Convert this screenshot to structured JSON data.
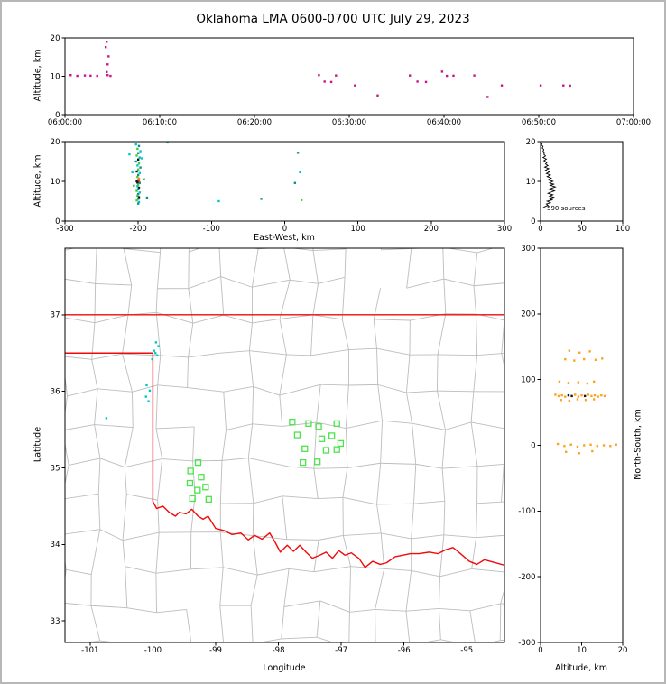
{
  "title": "Oklahoma LMA 0600-0700 UTC July 29, 2023",
  "color_key": {
    "cyan": "#00c8c8",
    "teal": "#0f8f8f",
    "green": "#3ccc3c",
    "black": "#141414",
    "orange": "#ff8c1a",
    "red": "#e03131",
    "o": "#ffa21f",
    "k": "#141414"
  },
  "chart_data": [
    {
      "id": "time_height",
      "type": "scatter",
      "xlabel": "",
      "ylabel": "Altitude, km",
      "xlim": [
        0,
        60
      ],
      "ylim": [
        0,
        20
      ],
      "xticks": [
        0,
        10,
        20,
        30,
        40,
        50,
        60
      ],
      "xtick_labels": [
        "06:00:00",
        "06:10:00",
        "06:20:00",
        "06:30:00",
        "06:40:00",
        "06:50:00",
        "07:00:00"
      ],
      "yticks": [
        0,
        10,
        20
      ],
      "point_color": "#C71585",
      "points": [
        [
          0.6,
          10.3
        ],
        [
          1.3,
          10.1
        ],
        [
          2.1,
          10.2
        ],
        [
          2.7,
          10.15
        ],
        [
          3.4,
          10.1
        ],
        [
          4.4,
          19.0
        ],
        [
          4.3,
          17.6
        ],
        [
          4.6,
          15.2
        ],
        [
          4.5,
          13.1
        ],
        [
          4.4,
          11.1
        ],
        [
          4.5,
          10.3
        ],
        [
          4.8,
          10.1
        ],
        [
          26.8,
          10.3
        ],
        [
          27.4,
          8.6
        ],
        [
          28.1,
          8.5
        ],
        [
          28.6,
          10.2
        ],
        [
          30.6,
          7.6
        ],
        [
          33.0,
          5.0
        ],
        [
          36.4,
          10.2
        ],
        [
          37.2,
          8.6
        ],
        [
          38.1,
          8.5
        ],
        [
          39.8,
          11.2
        ],
        [
          40.3,
          10.1
        ],
        [
          41.0,
          10.15
        ],
        [
          43.2,
          10.2
        ],
        [
          44.6,
          4.6
        ],
        [
          46.1,
          7.6
        ],
        [
          50.2,
          7.6
        ],
        [
          52.6,
          7.6
        ],
        [
          53.3,
          7.55
        ]
      ]
    },
    {
      "id": "ew_height",
      "type": "scatter",
      "xlabel": "East-West, km",
      "ylabel": "Altitude, km",
      "xlim": [
        -300,
        300
      ],
      "ylim": [
        0,
        20
      ],
      "xticks": [
        -300,
        -200,
        -100,
        0,
        100,
        200,
        300
      ],
      "yticks": [
        0,
        10,
        20
      ],
      "point_color": "#0f8f8f",
      "points": [
        [
          -203,
          19.3,
          "cyan"
        ],
        [
          -199,
          18.9,
          "teal"
        ],
        [
          -201,
          18.2,
          "green"
        ],
        [
          -197,
          17.6,
          "cyan"
        ],
        [
          -200,
          17.1,
          "teal"
        ],
        [
          -202,
          16.5,
          "green"
        ],
        [
          -198,
          16.0,
          "cyan"
        ],
        [
          -200,
          15.5,
          "black"
        ],
        [
          -203,
          15.0,
          "teal"
        ],
        [
          -199,
          14.5,
          "green"
        ],
        [
          -201,
          14.0,
          "cyan"
        ],
        [
          -197,
          13.5,
          "teal"
        ],
        [
          -200,
          13.0,
          "green"
        ],
        [
          -202,
          12.5,
          "black"
        ],
        [
          -198,
          12.1,
          "cyan"
        ],
        [
          -200,
          11.6,
          "teal"
        ],
        [
          -201,
          11.1,
          "green"
        ],
        [
          -199,
          10.7,
          "orange"
        ],
        [
          -200,
          10.3,
          "red"
        ],
        [
          -202,
          10.0,
          "black"
        ],
        [
          -199,
          9.9,
          "red"
        ],
        [
          -201,
          9.7,
          "black"
        ],
        [
          -198,
          9.6,
          "teal"
        ],
        [
          -200,
          9.2,
          "green"
        ],
        [
          -201,
          8.8,
          "cyan"
        ],
        [
          -199,
          8.4,
          "black"
        ],
        [
          -200,
          8.0,
          "teal"
        ],
        [
          -202,
          7.6,
          "green"
        ],
        [
          -198,
          7.2,
          "cyan"
        ],
        [
          -200,
          6.8,
          "teal"
        ],
        [
          -201,
          6.4,
          "green"
        ],
        [
          -199,
          6.0,
          "black"
        ],
        [
          -200,
          5.6,
          "teal"
        ],
        [
          -202,
          5.2,
          "green"
        ],
        [
          -199,
          4.8,
          "cyan"
        ],
        [
          -200,
          4.4,
          "teal"
        ],
        [
          -208,
          12.3,
          "cyan"
        ],
        [
          -192,
          10.5,
          "green"
        ],
        [
          -195,
          15.8,
          "cyan"
        ],
        [
          -206,
          8.9,
          "green"
        ],
        [
          -188,
          5.9,
          "teal"
        ],
        [
          -212,
          16.8,
          "cyan"
        ],
        [
          -160,
          19.8,
          "cyan"
        ],
        [
          18,
          17.2,
          "teal"
        ],
        [
          21,
          12.3,
          "cyan"
        ],
        [
          14,
          9.6,
          "teal"
        ],
        [
          23,
          5.3,
          "green"
        ],
        [
          -32,
          5.6,
          "teal"
        ],
        [
          -90,
          5.0,
          "cyan"
        ]
      ]
    },
    {
      "id": "alt_histogram",
      "type": "line",
      "annotation": "590 sources",
      "xlabel": "",
      "ylabel": "",
      "xlim": [
        0,
        100
      ],
      "ylim": [
        0,
        20
      ],
      "xticks": [
        0,
        50,
        100
      ],
      "yticks": [
        0,
        10,
        20
      ],
      "line_color": "#000000",
      "points": [
        [
          2,
          3.2
        ],
        [
          5,
          3.6
        ],
        [
          9,
          4.0
        ],
        [
          7,
          4.3
        ],
        [
          12,
          4.6
        ],
        [
          8,
          5.0
        ],
        [
          14,
          5.3
        ],
        [
          10,
          5.6
        ],
        [
          16,
          6.0
        ],
        [
          11,
          6.3
        ],
        [
          15,
          6.6
        ],
        [
          9,
          7.0
        ],
        [
          13,
          7.3
        ],
        [
          17,
          7.6
        ],
        [
          10,
          8.0
        ],
        [
          14,
          8.3
        ],
        [
          18,
          8.6
        ],
        [
          12,
          9.0
        ],
        [
          16,
          9.3
        ],
        [
          11,
          9.6
        ],
        [
          15,
          10.0
        ],
        [
          9,
          10.4
        ],
        [
          13,
          10.8
        ],
        [
          8,
          11.2
        ],
        [
          12,
          11.6
        ],
        [
          7,
          12.0
        ],
        [
          11,
          12.4
        ],
        [
          6,
          12.8
        ],
        [
          10,
          13.2
        ],
        [
          5,
          13.6
        ],
        [
          9,
          14.0
        ],
        [
          6,
          14.4
        ],
        [
          8,
          14.8
        ],
        [
          4,
          15.2
        ],
        [
          7,
          15.6
        ],
        [
          3,
          16.0
        ],
        [
          6,
          16.4
        ],
        [
          4,
          16.8
        ],
        [
          5,
          17.2
        ],
        [
          3,
          17.6
        ],
        [
          4,
          18.0
        ],
        [
          2,
          18.4
        ],
        [
          3,
          18.8
        ],
        [
          1,
          19.2
        ],
        [
          2,
          19.6
        ]
      ]
    },
    {
      "id": "map",
      "type": "scatter",
      "xlabel": "Longitude",
      "ylabel": "Latitude",
      "xlim": [
        -101.4,
        -94.4
      ],
      "ylim": [
        32.72,
        37.87
      ],
      "xticks": [
        -101,
        -100,
        -99,
        -98,
        -97,
        -96,
        -95
      ],
      "yticks": [
        33,
        34,
        35,
        36,
        37
      ],
      "county_color": "#bdbdbd",
      "square_color": "#4ce44c",
      "vhf_color": "#00c8c8",
      "state_border": {
        "color": "#f10a0a",
        "lines": [
          [
            [
              -101.4,
              37.0
            ],
            [
              -94.4,
              37.0
            ]
          ],
          [
            [
              -101.4,
              36.5
            ],
            [
              -100.0,
              36.5
            ]
          ],
          [
            [
              -100.0,
              36.5
            ],
            [
              -100.0,
              34.56
            ]
          ],
          [
            [
              -100.0,
              34.56
            ],
            [
              -99.94,
              34.47
            ],
            [
              -99.84,
              34.5
            ],
            [
              -99.74,
              34.42
            ],
            [
              -99.64,
              34.37
            ],
            [
              -99.58,
              34.42
            ],
            [
              -99.47,
              34.4
            ],
            [
              -99.38,
              34.46
            ],
            [
              -99.28,
              34.37
            ],
            [
              -99.2,
              34.33
            ],
            [
              -99.12,
              34.37
            ],
            [
              -99.0,
              34.21
            ],
            [
              -98.86,
              34.18
            ],
            [
              -98.74,
              34.13
            ],
            [
              -98.6,
              34.15
            ],
            [
              -98.48,
              34.06
            ],
            [
              -98.38,
              34.12
            ],
            [
              -98.26,
              34.07
            ],
            [
              -98.14,
              34.15
            ],
            [
              -98.06,
              34.04
            ],
            [
              -97.97,
              33.9
            ],
            [
              -97.86,
              33.99
            ],
            [
              -97.76,
              33.91
            ],
            [
              -97.66,
              33.99
            ],
            [
              -97.56,
              33.9
            ],
            [
              -97.46,
              33.82
            ],
            [
              -97.34,
              33.86
            ],
            [
              -97.24,
              33.9
            ],
            [
              -97.14,
              33.82
            ],
            [
              -97.04,
              33.92
            ],
            [
              -96.94,
              33.86
            ],
            [
              -96.84,
              33.89
            ],
            [
              -96.72,
              33.82
            ],
            [
              -96.62,
              33.7
            ],
            [
              -96.5,
              33.78
            ],
            [
              -96.38,
              33.74
            ],
            [
              -96.28,
              33.76
            ],
            [
              -96.14,
              33.84
            ],
            [
              -96.02,
              33.86
            ],
            [
              -95.9,
              33.88
            ],
            [
              -95.76,
              33.88
            ],
            [
              -95.6,
              33.9
            ],
            [
              -95.46,
              33.88
            ],
            [
              -95.34,
              33.93
            ],
            [
              -95.22,
              33.96
            ],
            [
              -95.1,
              33.88
            ],
            [
              -94.96,
              33.78
            ],
            [
              -94.84,
              33.74
            ],
            [
              -94.72,
              33.8
            ],
            [
              -94.58,
              33.77
            ],
            [
              -94.4,
              33.73
            ]
          ]
        ]
      },
      "flash_squares": [
        [
          -97.78,
          35.6
        ],
        [
          -97.52,
          35.58
        ],
        [
          -97.36,
          35.54
        ],
        [
          -97.07,
          35.58
        ],
        [
          -97.7,
          35.43
        ],
        [
          -97.31,
          35.38
        ],
        [
          -97.15,
          35.42
        ],
        [
          -97.01,
          35.32
        ],
        [
          -97.58,
          35.25
        ],
        [
          -97.24,
          35.23
        ],
        [
          -97.07,
          35.24
        ],
        [
          -97.61,
          35.07
        ],
        [
          -97.38,
          35.08
        ],
        [
          -99.28,
          35.07
        ],
        [
          -99.4,
          34.96
        ],
        [
          -99.23,
          34.88
        ],
        [
          -99.41,
          34.8
        ],
        [
          -99.29,
          34.71
        ],
        [
          -99.16,
          34.75
        ],
        [
          -99.37,
          34.6
        ],
        [
          -99.11,
          34.59
        ]
      ],
      "vhf_points": [
        [
          -99.95,
          36.64
        ],
        [
          -99.91,
          36.59
        ],
        [
          -99.98,
          36.53
        ],
        [
          -99.93,
          36.47
        ],
        [
          -100.01,
          36.42
        ],
        [
          -99.96,
          36.5
        ],
        [
          -100.1,
          36.08
        ],
        [
          -100.05,
          36.01
        ],
        [
          -100.11,
          35.93
        ],
        [
          -100.07,
          35.87
        ],
        [
          -100.74,
          35.65
        ]
      ]
    },
    {
      "id": "ns_height",
      "type": "scatter",
      "xlabel": "Altitude, km",
      "ylabel": "North-South, km",
      "xlim": [
        0,
        20
      ],
      "ylim": [
        -300,
        300
      ],
      "xticks": [
        0,
        10,
        20
      ],
      "yticks": [
        -300,
        -200,
        -100,
        0,
        100,
        200,
        300
      ],
      "point_color": "#ffa21f",
      "points": [
        [
          7,
          144,
          "o"
        ],
        [
          9.5,
          141,
          "o"
        ],
        [
          12,
          143,
          "o"
        ],
        [
          6,
          131,
          "o"
        ],
        [
          8.2,
          129,
          "o"
        ],
        [
          10.6,
          131,
          "o"
        ],
        [
          13.4,
          130,
          "o"
        ],
        [
          15,
          132,
          "o"
        ],
        [
          4.6,
          97,
          "o"
        ],
        [
          6.8,
          95,
          "o"
        ],
        [
          9.2,
          96,
          "o"
        ],
        [
          11.4,
          94,
          "o"
        ],
        [
          13,
          97,
          "o"
        ],
        [
          3.6,
          77,
          "o"
        ],
        [
          4.4,
          75,
          "o"
        ],
        [
          5.2,
          76,
          "o"
        ],
        [
          6.0,
          74,
          "o"
        ],
        [
          6.8,
          76,
          "k"
        ],
        [
          7.6,
          75,
          "k"
        ],
        [
          8.4,
          77,
          "o"
        ],
        [
          9.2,
          74,
          "o"
        ],
        [
          10.0,
          76,
          "o"
        ],
        [
          10.8,
          75,
          "k"
        ],
        [
          11.6,
          77,
          "o"
        ],
        [
          12.4,
          75,
          "o"
        ],
        [
          13.2,
          76,
          "o"
        ],
        [
          14.0,
          74,
          "o"
        ],
        [
          14.8,
          76,
          "o"
        ],
        [
          15.6,
          75,
          "o"
        ],
        [
          5.0,
          69,
          "o"
        ],
        [
          7.0,
          68,
          "o"
        ],
        [
          9.0,
          70,
          "o"
        ],
        [
          11.0,
          69,
          "o"
        ],
        [
          13.0,
          70,
          "o"
        ],
        [
          4.2,
          2,
          "o"
        ],
        [
          5.8,
          -1,
          "o"
        ],
        [
          7.4,
          1,
          "o"
        ],
        [
          9.0,
          -2,
          "o"
        ],
        [
          10.6,
          0,
          "o"
        ],
        [
          12.2,
          1,
          "o"
        ],
        [
          13.8,
          -1,
          "o"
        ],
        [
          15.4,
          0,
          "o"
        ],
        [
          17.0,
          -1,
          "o"
        ],
        [
          18.4,
          1,
          "o"
        ],
        [
          6.2,
          -10,
          "o"
        ],
        [
          9.4,
          -12,
          "o"
        ],
        [
          12.6,
          -9,
          "o"
        ]
      ]
    }
  ]
}
